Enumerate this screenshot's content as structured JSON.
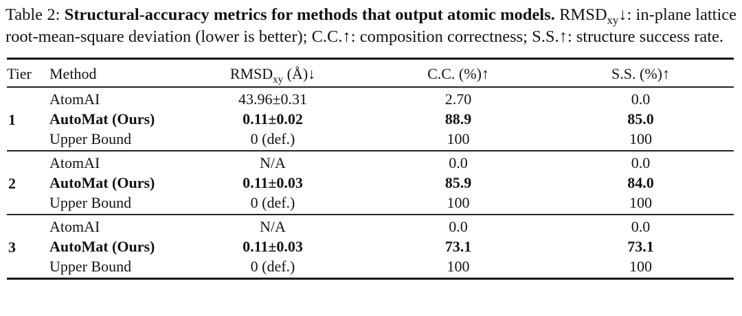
{
  "caption": {
    "label": "Table 2:",
    "title_bold": "Structural-accuracy metrics for methods that output atomic models.",
    "desc_pre_sub": "RMSD",
    "desc_sub": "xy",
    "desc_post_sub": "↓: in-plane lattice root-mean-square deviation (lower is better); C.C.↑: composition correctness; S.S.↑: structure success rate."
  },
  "table": {
    "headers": {
      "tier": "Tier",
      "method": "Method",
      "rmsd_pre": "RMSD",
      "rmsd_sub": "xy",
      "rmsd_post": " (Å)↓",
      "cc": "C.C. (%)↑",
      "ss": "S.S. (%)↑"
    },
    "groups": [
      {
        "tier": "1",
        "rows": [
          {
            "method": "AtomAI",
            "rmsd": "43.96±0.31",
            "cc": "2.70",
            "ss": "0.0"
          },
          {
            "method": "AutoMat (Ours)",
            "rmsd": "0.11±0.02",
            "cc": "88.9",
            "ss": "85.0"
          },
          {
            "method": "Upper Bound",
            "rmsd": "0 (def.)",
            "cc": "100",
            "ss": "100"
          }
        ]
      },
      {
        "tier": "2",
        "rows": [
          {
            "method": "AtomAI",
            "rmsd": "N/A",
            "cc": "0.0",
            "ss": "0.0"
          },
          {
            "method": "AutoMat (Ours)",
            "rmsd": "0.11±0.03",
            "cc": "85.9",
            "ss": "84.0"
          },
          {
            "method": "Upper Bound",
            "rmsd": "0 (def.)",
            "cc": "100",
            "ss": "100"
          }
        ]
      },
      {
        "tier": "3",
        "rows": [
          {
            "method": "AtomAI",
            "rmsd": "N/A",
            "cc": "0.0",
            "ss": "0.0"
          },
          {
            "method": "AutoMat (Ours)",
            "rmsd": "0.11±0.03",
            "cc": "73.1",
            "ss": "73.1"
          },
          {
            "method": "Upper Bound",
            "rmsd": "0 (def.)",
            "cc": "100",
            "ss": "100"
          }
        ]
      }
    ]
  },
  "colors": {
    "text": "#131313",
    "rule": "#111111",
    "background": "#ffffff"
  }
}
